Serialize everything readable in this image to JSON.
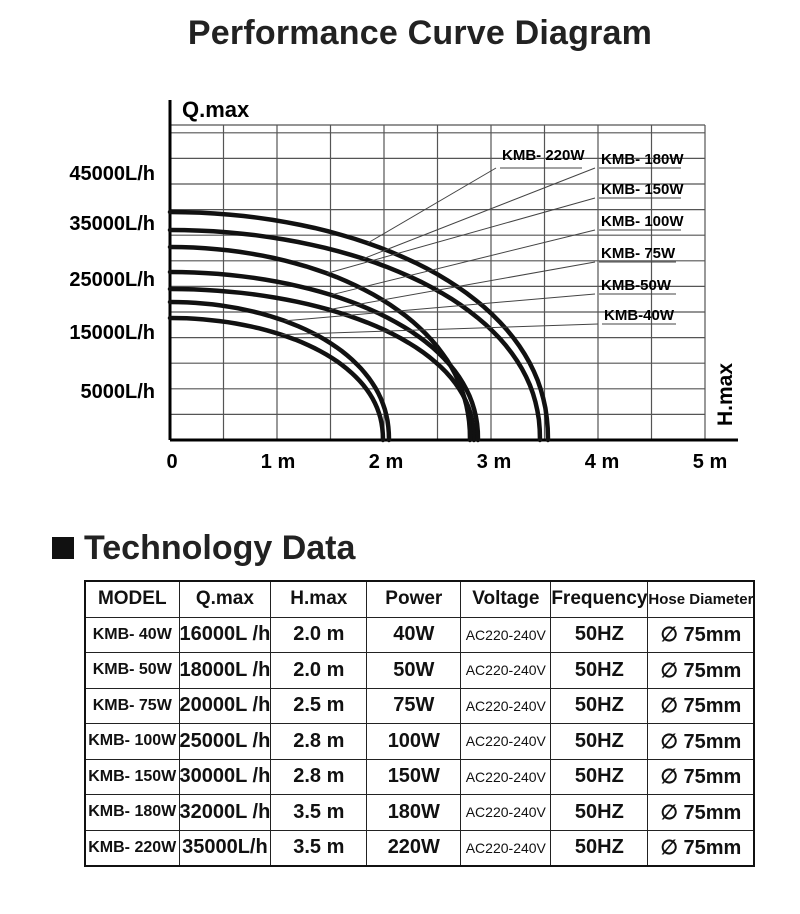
{
  "page": {
    "title": "Performance Curve Diagram"
  },
  "chart_data": {
    "type": "line",
    "ylabel": "Q.max",
    "xlabel": "H.max",
    "y_ticks": [
      {
        "value": 5000,
        "label": "5000L/h"
      },
      {
        "value": 15000,
        "label": "15000L/h"
      },
      {
        "value": 25000,
        "label": "25000L/h"
      },
      {
        "value": 35000,
        "label": "35000L/h"
      },
      {
        "value": 45000,
        "label": "45000L/h"
      }
    ],
    "x_ticks": [
      {
        "value": 0,
        "label": "0"
      },
      {
        "value": 1,
        "label": "1 m"
      },
      {
        "value": 2,
        "label": "2 m"
      },
      {
        "value": 3,
        "label": "3 m"
      },
      {
        "value": 4,
        "label": "4 m"
      },
      {
        "value": 5,
        "label": "5 m"
      }
    ],
    "xlim": [
      0,
      5
    ],
    "ylim": [
      0,
      50000
    ],
    "grid": true,
    "series": [
      {
        "name": "KMB-40W",
        "q0": 16000,
        "hmax": 2.0
      },
      {
        "name": "KMB-50W",
        "q0": 18000,
        "hmax": 2.0
      },
      {
        "name": "KMB-75W",
        "q0": 20000,
        "hmax": 2.5
      },
      {
        "name": "KMB-100W",
        "q0": 25000,
        "hmax": 2.8
      },
      {
        "name": "KMB-150W",
        "q0": 30000,
        "hmax": 2.8
      },
      {
        "name": "KMB-180W",
        "q0": 32000,
        "hmax": 3.5
      },
      {
        "name": "KMB-220W",
        "q0": 35000,
        "hmax": 3.5
      }
    ],
    "annotations": [
      "KMB- 220W",
      "KMB- 180W",
      "KMB- 150W",
      "KMB- 100W",
      "KMB- 75W",
      "KMB-50W",
      "KMB-40W"
    ]
  },
  "technology": {
    "heading": "Technology Data",
    "headers": [
      "MODEL",
      "Q.max",
      "H.max",
      "Power",
      "Voltage",
      "Frequency",
      "Hose Diameter"
    ],
    "rows": [
      [
        "KMB- 40W",
        "16000L /h",
        "2.0 m",
        "40W",
        "AC220-240V",
        "50HZ",
        "∅ 75mm"
      ],
      [
        "KMB- 50W",
        "18000L /h",
        "2.0 m",
        "50W",
        "AC220-240V",
        "50HZ",
        "∅ 75mm"
      ],
      [
        "KMB- 75W",
        "20000L /h",
        "2.5 m",
        "75W",
        "AC220-240V",
        "50HZ",
        "∅ 75mm"
      ],
      [
        "KMB- 100W",
        "25000L /h",
        "2.8 m",
        "100W",
        "AC220-240V",
        "50HZ",
        "∅ 75mm"
      ],
      [
        "KMB- 150W",
        "30000L /h",
        "2.8 m",
        "150W",
        "AC220-240V",
        "50HZ",
        "∅ 75mm"
      ],
      [
        "KMB- 180W",
        "32000L /h",
        "3.5 m",
        "180W",
        "AC220-240V",
        "50HZ",
        "∅ 75mm"
      ],
      [
        "KMB- 220W",
        "35000L/h",
        "3.5 m",
        "220W",
        "AC220-240V",
        "50HZ",
        "∅ 75mm"
      ]
    ]
  }
}
